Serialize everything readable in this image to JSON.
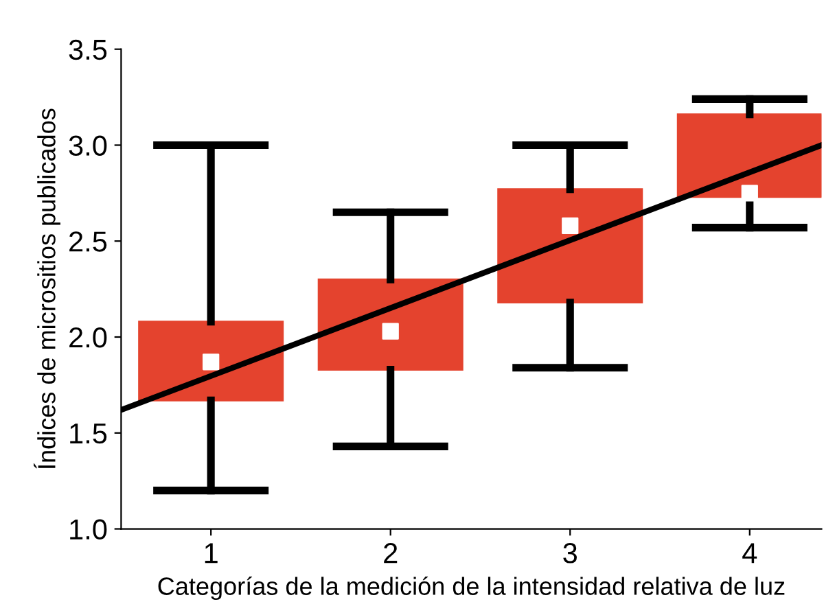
{
  "chart_data": {
    "type": "box",
    "xlabel": "Categorías de la medición de la intensidad relativa de luz",
    "ylabel": "Índices de micrositios publicados",
    "x": [
      1,
      2,
      3,
      4
    ],
    "xlim": [
      0.5,
      4.4
    ],
    "xticks": [
      1,
      2,
      3,
      4
    ],
    "ylim": [
      1.0,
      3.5
    ],
    "yticks": [
      {
        "value": 1.0,
        "label": "1.0"
      },
      {
        "value": 1.5,
        "label": "1.5"
      },
      {
        "value": 2.0,
        "label": "2.0"
      },
      {
        "value": 2.5,
        "label": "2.5"
      },
      {
        "value": 3.0,
        "label": "3.0"
      },
      {
        "value": 3.5,
        "label": "3.5"
      }
    ],
    "grid": false,
    "series": [
      {
        "color": "#e4432e",
        "boxes": [
          {
            "low": 1.2,
            "q1": 1.67,
            "median": 1.87,
            "q3": 2.08,
            "high": 3.0
          },
          {
            "low": 1.43,
            "q1": 1.83,
            "median": 2.03,
            "q3": 2.3,
            "high": 2.65
          },
          {
            "low": 1.84,
            "q1": 2.18,
            "median": 2.58,
            "q3": 2.77,
            "high": 3.0
          },
          {
            "low": 2.57,
            "q1": 2.73,
            "median": 2.75,
            "q3": 3.16,
            "high": 3.24
          }
        ]
      },
      {
        "type": "line",
        "color": "#000000",
        "x": [
          0.5,
          4.4
        ],
        "values": [
          1.62,
          3.0
        ]
      }
    ]
  }
}
